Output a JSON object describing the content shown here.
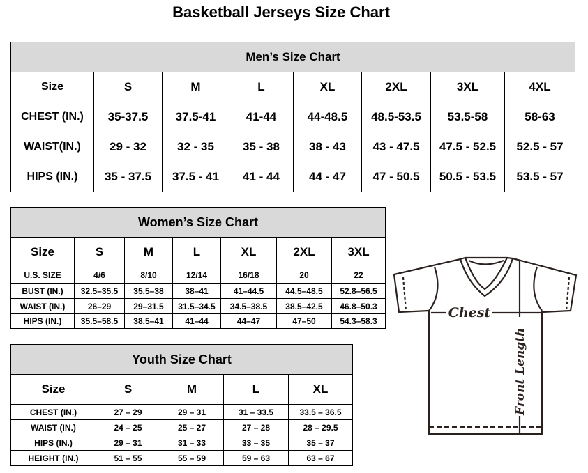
{
  "title": "Basketball Jerseys Size Chart",
  "men": {
    "heading": "Men’s Size Chart",
    "header": [
      "Size",
      "S",
      "M",
      "L",
      "XL",
      "2XL",
      "3XL",
      "4XL"
    ],
    "rows": [
      [
        "CHEST (IN.)",
        "35-37.5",
        "37.5-41",
        "41-44",
        "44-48.5",
        "48.5-53.5",
        "53.5-58",
        "58-63"
      ],
      [
        "WAIST(IN.)",
        "29 - 32",
        "32 - 35",
        "35 - 38",
        "38 - 43",
        "43 - 47.5",
        "47.5 - 52.5",
        "52.5 - 57"
      ],
      [
        "HIPS (IN.)",
        "35 - 37.5",
        "37.5 - 41",
        "41 - 44",
        "44 - 47",
        "47 - 50.5",
        "50.5 - 53.5",
        "53.5 - 57"
      ]
    ]
  },
  "women": {
    "heading": "Women’s Size Chart",
    "header": [
      "Size",
      "S",
      "M",
      "L",
      "XL",
      "2XL",
      "3XL"
    ],
    "rows": [
      [
        "U.S.  SIZE",
        "4/6",
        "8/10",
        "12/14",
        "16/18",
        "20",
        "22"
      ],
      [
        "BUST  (IN.)",
        "32.5–35.5",
        "35.5–38",
        "38–41",
        "41–44.5",
        "44.5–48.5",
        "52.8–56.5"
      ],
      [
        "WAIST  (IN.)",
        "26–29",
        "29–31.5",
        "31.5–34.5",
        "34.5–38.5",
        "38.5–42.5",
        "46.8–50.3"
      ],
      [
        "HIPS  (IN.)",
        "35.5–58.5",
        "38.5–41",
        "41–44",
        "44–47",
        "47–50",
        "54.3–58.3"
      ]
    ]
  },
  "youth": {
    "heading": "Youth Size Chart",
    "header": [
      "Size",
      "S",
      "M",
      "L",
      "XL"
    ],
    "rows": [
      [
        "CHEST  (IN.)",
        "27  –  29",
        "29  –  31",
        "31  –  33.5",
        "33.5  –  36.5"
      ],
      [
        "WAIST  (IN.)",
        "24  –  25",
        "25  –  27",
        "27  –  28",
        "28  –  29.5"
      ],
      [
        "HIPS  (IN.)",
        "29  –  31",
        "31  –  33",
        "33  –  35",
        "35  –  37"
      ],
      [
        "HEIGHT  (IN.)",
        "51  –  55",
        "55  –  59",
        "59  –  63",
        "63  –  67"
      ]
    ]
  },
  "diagram": {
    "chest_label": "Chest",
    "length_label": "Front Length"
  }
}
